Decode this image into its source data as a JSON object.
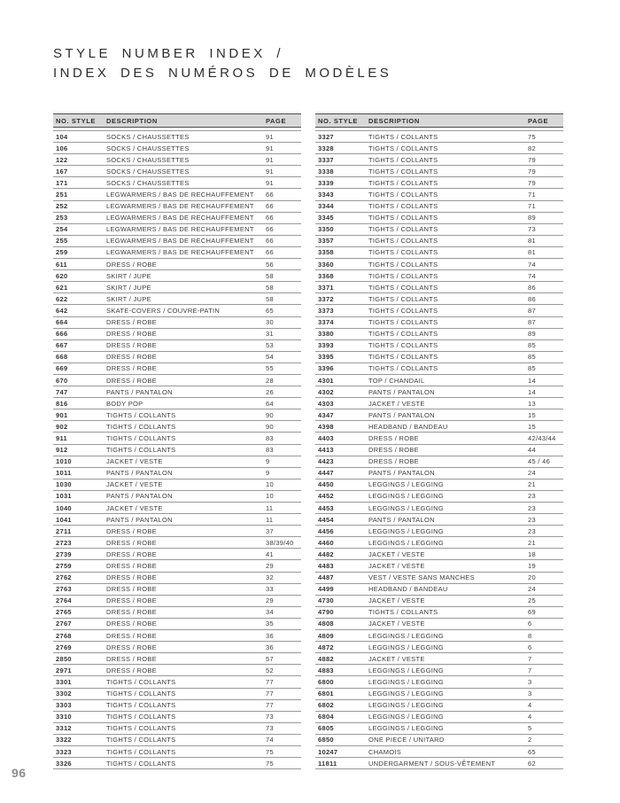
{
  "page": {
    "title_line1": "STYLE NUMBER INDEX  /",
    "title_line2": "INDEX DES NUMÉROS DE MODÈLES",
    "page_number": "96"
  },
  "columns": {
    "no_style": "NO. STYLE",
    "description": "DESCRIPTION",
    "page": "PAGE"
  },
  "colors": {
    "header_background": "#d8d8d8",
    "row_line": "#999999",
    "header_border": "#4c4c4c",
    "body_text": "#3c3c3c",
    "page_number_gray": "#8d8d8d"
  },
  "tables": {
    "left": {
      "rows": [
        [
          "104",
          "SOCKS / CHAUSSETTES",
          "91"
        ],
        [
          "106",
          "SOCKS / CHAUSSETTES",
          "91"
        ],
        [
          "122",
          "SOCKS / CHAUSSETTES",
          "91"
        ],
        [
          "167",
          "SOCKS / CHAUSSETTES",
          "91"
        ],
        [
          "171",
          "SOCKS / CHAUSSETTES",
          "91"
        ],
        [
          "251",
          "LEGWARMERS / BAS DE RECHAUFFEMENT",
          "66"
        ],
        [
          "252",
          "LEGWARMERS / BAS DE RECHAUFFEMENT",
          "66"
        ],
        [
          "253",
          "LEGWARMERS / BAS DE RECHAUFFEMENT",
          "66"
        ],
        [
          "254",
          "LEGWARMERS / BAS DE RECHAUFFEMENT",
          "66"
        ],
        [
          "255",
          "LEGWARMERS / BAS DE RECHAUFFEMENT",
          "66"
        ],
        [
          "259",
          "LEGWARMERS / BAS DE RECHAUFFEMENT",
          "66"
        ],
        [
          "611",
          "DRESS / ROBE",
          "56"
        ],
        [
          "620",
          "SKIRT / JUPE",
          "58"
        ],
        [
          "621",
          "SKIRT / JUPE",
          "58"
        ],
        [
          "622",
          "SKIRT / JUPE",
          "58"
        ],
        [
          "642",
          "SKATE-COVERS / COUVRE-PATIN",
          "65"
        ],
        [
          "664",
          "DRESS / ROBE",
          "30"
        ],
        [
          "666",
          "DRESS / ROBE",
          "31"
        ],
        [
          "667",
          "DRESS / ROBE",
          "53"
        ],
        [
          "668",
          "DRESS / ROBE",
          "54"
        ],
        [
          "669",
          "DRESS / ROBE",
          "55"
        ],
        [
          "670",
          "DRESS / ROBE",
          "28"
        ],
        [
          "747",
          "PANTS / PANTALON",
          "26"
        ],
        [
          "816",
          "BODY POP",
          "64"
        ],
        [
          "901",
          "TIGHTS / COLLANTS",
          "90"
        ],
        [
          "902",
          "TIGHTS / COLLANTS",
          "90"
        ],
        [
          "911",
          "TIGHTS / COLLANTS",
          "83"
        ],
        [
          "912",
          "TIGHTS / COLLANTS",
          "83"
        ],
        [
          "1010",
          "JACKET / VESTE",
          "9"
        ],
        [
          "1011",
          "PANTS / PANTALON",
          "9"
        ],
        [
          "1030",
          "JACKET / VESTE",
          "10"
        ],
        [
          "1031",
          "PANTS / PANTALON",
          "10"
        ],
        [
          "1040",
          "JACKET / VESTE",
          "11"
        ],
        [
          "1041",
          "PANTS / PANTALON",
          "11"
        ],
        [
          "2711",
          "DRESS / ROBE",
          "37"
        ],
        [
          "2723",
          "DRESS / ROBE",
          "38/39/40"
        ],
        [
          "2739",
          "DRESS / ROBE",
          "41"
        ],
        [
          "2759",
          "DRESS / ROBE",
          "29"
        ],
        [
          "2762",
          "DRESS / ROBE",
          "32"
        ],
        [
          "2763",
          "DRESS / ROBE",
          "33"
        ],
        [
          "2764",
          "DRESS / ROBE",
          "29"
        ],
        [
          "2765",
          "DRESS / ROBE",
          "34"
        ],
        [
          "2767",
          "DRESS / ROBE",
          "35"
        ],
        [
          "2768",
          "DRESS / ROBE",
          "36"
        ],
        [
          "2769",
          "DRESS / ROBE",
          "36"
        ],
        [
          "2850",
          "DRESS / ROBE",
          "57"
        ],
        [
          "2971",
          "DRESS / ROBE",
          "52"
        ],
        [
          "3301",
          "TIGHTS / COLLANTS",
          "77"
        ],
        [
          "3302",
          "TIGHTS / COLLANTS",
          "77"
        ],
        [
          "3303",
          "TIGHTS / COLLANTS",
          "77"
        ],
        [
          "3310",
          "TIGHTS / COLLANTS",
          "73"
        ],
        [
          "3312",
          "TIGHTS / COLLANTS",
          "73"
        ],
        [
          "3322",
          "TIGHTS / COLLANTS",
          "74"
        ],
        [
          "3323",
          "TIGHTS / COLLANTS",
          "75"
        ],
        [
          "3326",
          "TIGHTS / COLLANTS",
          "75"
        ]
      ]
    },
    "right": {
      "rows": [
        [
          "3327",
          "TIGHTS / COLLANTS",
          "75"
        ],
        [
          "3328",
          "TIGHTS / COLLANTS",
          "82"
        ],
        [
          "3337",
          "TIGHTS / COLLANTS",
          "79"
        ],
        [
          "3338",
          "TIGHTS / COLLANTS",
          "79"
        ],
        [
          "3339",
          "TIGHTS / COLLANTS",
          "79"
        ],
        [
          "3343",
          "TIGHTS / COLLANTS",
          "71"
        ],
        [
          "3344",
          "TIGHTS / COLLANTS",
          "71"
        ],
        [
          "3345",
          "TIGHTS / COLLANTS",
          "89"
        ],
        [
          "3350",
          "TIGHTS / COLLANTS",
          "73"
        ],
        [
          "3357",
          "TIGHTS / COLLANTS",
          "81"
        ],
        [
          "3358",
          "TIGHTS / COLLANTS",
          "81"
        ],
        [
          "3360",
          "TIGHTS / COLLANTS",
          "74"
        ],
        [
          "3368",
          "TIGHTS / COLLANTS",
          "74"
        ],
        [
          "3371",
          "TIGHTS / COLLANTS",
          "86"
        ],
        [
          "3372",
          "TIGHTS / COLLANTS",
          "86"
        ],
        [
          "3373",
          "TIGHTS / COLLANTS",
          "87"
        ],
        [
          "3374",
          "TIGHTS / COLLANTS",
          "87"
        ],
        [
          "3380",
          "TIGHTS / COLLANTS",
          "89"
        ],
        [
          "3393",
          "TIGHTS / COLLANTS",
          "85"
        ],
        [
          "3395",
          "TIGHTS / COLLANTS",
          "85"
        ],
        [
          "3396",
          "TIGHTS / COLLANTS",
          "85"
        ],
        [
          "4301",
          "TOP / CHANDAIL",
          "14"
        ],
        [
          "4302",
          "PANTS / PANTALON",
          "14"
        ],
        [
          "4303",
          "JACKET / VESTE",
          "13"
        ],
        [
          "4347",
          "PANTS / PANTALON",
          "15"
        ],
        [
          "4398",
          "HEADBAND / BANDEAU",
          "15"
        ],
        [
          "4403",
          "DRESS / ROBE",
          "42/43/44"
        ],
        [
          "4413",
          "DRESS / ROBE",
          "44"
        ],
        [
          "4423",
          "DRESS / ROBE",
          "45 / 46"
        ],
        [
          "4447",
          "PANTS / PANTALON",
          "24"
        ],
        [
          "4450",
          "LEGGINGS / LEGGING",
          "21"
        ],
        [
          "4452",
          "LEGGINGS / LEGGING",
          "23"
        ],
        [
          "4453",
          "LEGGINGS / LEGGING",
          "23"
        ],
        [
          "4454",
          "PANTS / PANTALON",
          "23"
        ],
        [
          "4456",
          "LEGGINGS / LEGGING",
          "23"
        ],
        [
          "4460",
          "LEGGINGS / LEGGING",
          "21"
        ],
        [
          "4482",
          "JACKET / VESTE",
          "18"
        ],
        [
          "4483",
          "JACKET / VESTE",
          "19"
        ],
        [
          "4487",
          "VEST / VESTE SANS MANCHES",
          "20"
        ],
        [
          "4499",
          "HEADBAND / BANDEAU",
          "24"
        ],
        [
          "4730",
          "JACKET / VESTE",
          "25"
        ],
        [
          "4790",
          "TIGHTS / COLLANTS",
          "69"
        ],
        [
          "4808",
          "JACKET / VESTE",
          "6"
        ],
        [
          "4809",
          "LEGGINGS / LEGGING",
          "8"
        ],
        [
          "4872",
          "LEGGINGS / LEGGING",
          "6"
        ],
        [
          "4882",
          "JACKET / VESTE",
          "7"
        ],
        [
          "4883",
          "LEGGINGS / LEGGING",
          "7"
        ],
        [
          "6800",
          "LEGGINGS / LEGGING",
          "3"
        ],
        [
          "6801",
          "LEGGINGS / LEGGING",
          "3"
        ],
        [
          "6802",
          "LEGGINGS / LEGGING",
          "4"
        ],
        [
          "6804",
          "LEGGINGS / LEGGING",
          "4"
        ],
        [
          "6805",
          "LEGGINGS / LEGGING",
          "5"
        ],
        [
          "6850",
          "ONE PIECE / UNITARD",
          "2"
        ],
        [
          "10247",
          "CHAMOIS",
          "65"
        ],
        [
          "11811",
          "UNDERGARMENT / SOUS-VÊTEMENT",
          "62"
        ]
      ]
    }
  }
}
